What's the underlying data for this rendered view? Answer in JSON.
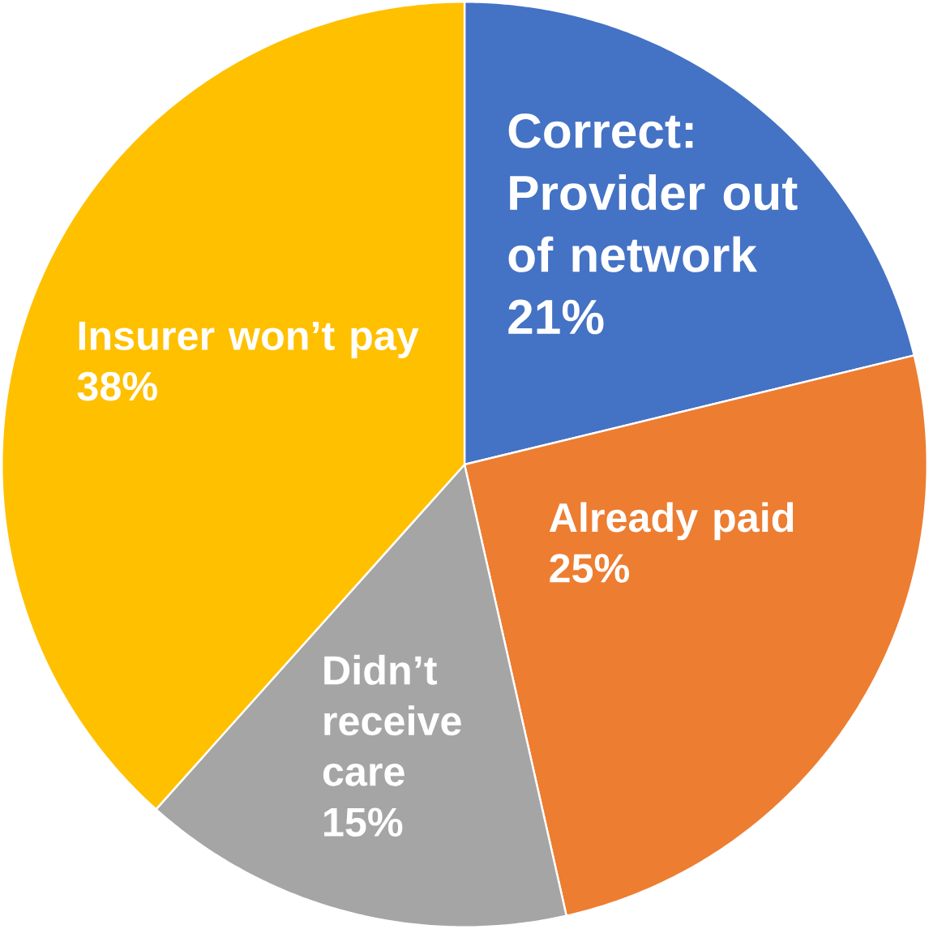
{
  "chart_data": {
    "type": "pie",
    "categories": [
      "Correct: Provider out of network",
      "Already paid",
      "Didn’t receive care",
      "Insurer won’t pay"
    ],
    "values": [
      21,
      25,
      15,
      38
    ],
    "value_labels": [
      "21%",
      "25%",
      "15%",
      "38%"
    ],
    "colors": [
      "#4472c4",
      "#ed7d31",
      "#a5a5a5",
      "#ffc000"
    ]
  }
}
